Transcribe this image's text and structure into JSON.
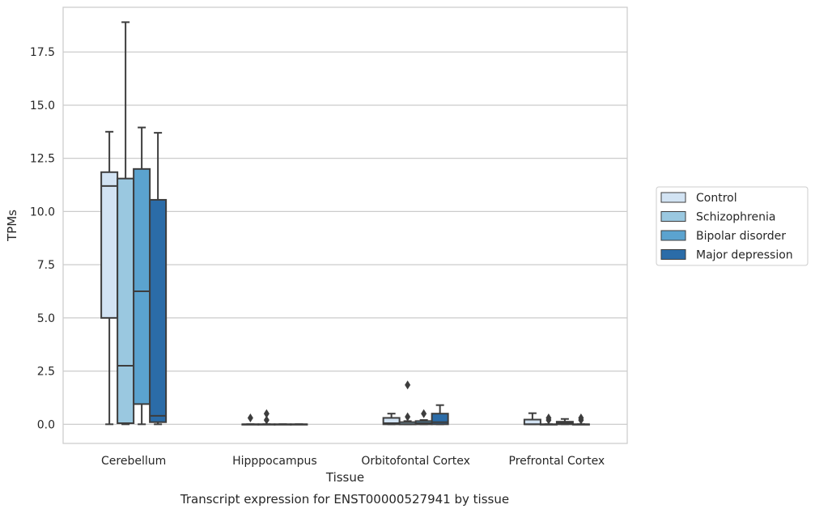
{
  "chart_data": {
    "type": "box",
    "title": "Transcript expression for ENST00000527941 by tissue",
    "xlabel": "Tissue",
    "ylabel": "TPMs",
    "ylim": [
      -0.9,
      19.6
    ],
    "yticks": [
      0.0,
      2.5,
      5.0,
      7.5,
      10.0,
      12.5,
      15.0,
      17.5
    ],
    "ytick_labels": [
      "0.0",
      "2.5",
      "5.0",
      "7.5",
      "10.0",
      "12.5",
      "15.0",
      "17.5"
    ],
    "grid": true,
    "legend_position": "right",
    "categories": [
      "Cerebellum",
      "Hipppocampus",
      "Orbitofontal Cortex",
      "Prefrontal Cortex"
    ],
    "series": [
      {
        "name": "Control",
        "color": "#d2e3f3",
        "boxes": [
          {
            "whislo": 0.0,
            "q1": 5.0,
            "med": 11.2,
            "q3": 11.85,
            "whishi": 13.75,
            "fliers": []
          },
          {
            "whislo": 0.0,
            "q1": 0.0,
            "med": 0.0,
            "q3": 0.0,
            "whishi": 0.0,
            "fliers": [
              0.3
            ]
          },
          {
            "whislo": 0.0,
            "q1": 0.0,
            "med": 0.05,
            "q3": 0.3,
            "whishi": 0.5,
            "fliers": []
          },
          {
            "whislo": 0.0,
            "q1": 0.0,
            "med": 0.0,
            "q3": 0.22,
            "whishi": 0.52,
            "fliers": []
          }
        ]
      },
      {
        "name": "Schizophrenia",
        "color": "#9ac8e0",
        "boxes": [
          {
            "whislo": 0.0,
            "q1": 0.05,
            "med": 2.75,
            "q3": 11.55,
            "whishi": 18.9,
            "fliers": []
          },
          {
            "whislo": 0.0,
            "q1": 0.0,
            "med": 0.0,
            "q3": 0.0,
            "whishi": 0.0,
            "fliers": [
              0.2,
              0.5
            ]
          },
          {
            "whislo": 0.0,
            "q1": 0.0,
            "med": 0.0,
            "q3": 0.1,
            "whishi": 0.15,
            "fliers": [
              0.35,
              1.85
            ]
          },
          {
            "whislo": 0.0,
            "q1": 0.0,
            "med": 0.0,
            "q3": 0.0,
            "whishi": 0.0,
            "fliers": [
              0.2,
              0.3
            ]
          }
        ]
      },
      {
        "name": "Bipolar disorder",
        "color": "#5ba3cf",
        "boxes": [
          {
            "whislo": 0.0,
            "q1": 0.95,
            "med": 6.25,
            "q3": 12.0,
            "whishi": 13.95,
            "fliers": []
          },
          {
            "whislo": 0.0,
            "q1": 0.0,
            "med": 0.0,
            "q3": 0.0,
            "whishi": 0.0,
            "fliers": []
          },
          {
            "whislo": 0.0,
            "q1": 0.0,
            "med": 0.05,
            "q3": 0.15,
            "whishi": 0.2,
            "fliers": [
              0.5
            ]
          },
          {
            "whislo": 0.0,
            "q1": 0.0,
            "med": 0.05,
            "q3": 0.12,
            "whishi": 0.25,
            "fliers": []
          }
        ]
      },
      {
        "name": "Major depression",
        "color": "#2b6ca8",
        "boxes": [
          {
            "whislo": 0.0,
            "q1": 0.1,
            "med": 0.4,
            "q3": 10.55,
            "whishi": 13.7,
            "fliers": []
          },
          {
            "whislo": 0.0,
            "q1": 0.0,
            "med": 0.0,
            "q3": 0.0,
            "whishi": 0.0,
            "fliers": []
          },
          {
            "whislo": 0.0,
            "q1": 0.0,
            "med": 0.1,
            "q3": 0.5,
            "whishi": 0.9,
            "fliers": []
          },
          {
            "whislo": 0.0,
            "q1": 0.0,
            "med": 0.0,
            "q3": 0.0,
            "whishi": 0.0,
            "fliers": [
              0.2,
              0.3
            ]
          }
        ]
      }
    ]
  }
}
